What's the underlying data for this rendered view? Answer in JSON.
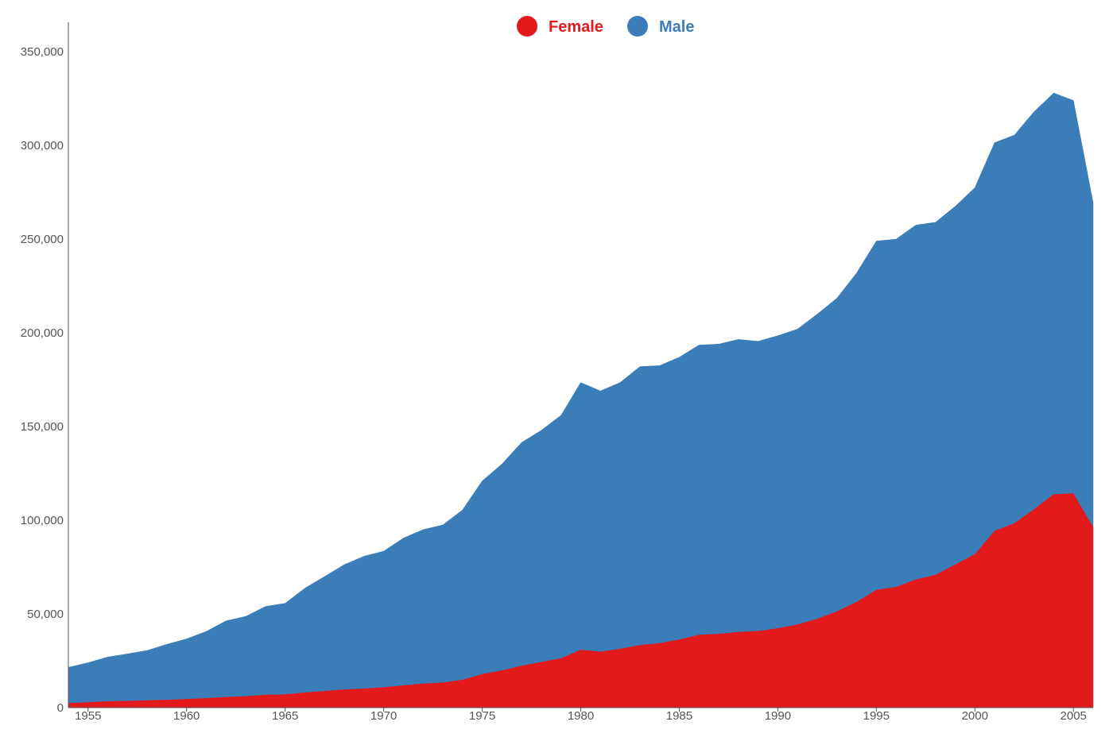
{
  "chart_data": {
    "type": "area",
    "stacked": true,
    "title": "",
    "xlabel": "",
    "ylabel": "",
    "xlim": [
      1954,
      2006
    ],
    "ylim": [
      0,
      370000
    ],
    "grid": false,
    "legend_position": "top-center",
    "x": [
      1954,
      1955,
      1956,
      1957,
      1958,
      1959,
      1960,
      1961,
      1962,
      1963,
      1964,
      1965,
      1966,
      1967,
      1968,
      1969,
      1970,
      1971,
      1972,
      1973,
      1974,
      1975,
      1976,
      1977,
      1978,
      1979,
      1980,
      1981,
      1982,
      1983,
      1984,
      1985,
      1986,
      1987,
      1988,
      1989,
      1990,
      1991,
      1992,
      1993,
      1994,
      1995,
      1996,
      1997,
      1998,
      1999,
      2000,
      2001,
      2002,
      2003,
      2004,
      2005,
      2006
    ],
    "x_ticks": [
      "1955",
      "1960",
      "1965",
      "1970",
      "1975",
      "1980",
      "1985",
      "1990",
      "1995",
      "2000",
      "2005"
    ],
    "y_ticks": [
      "0",
      "50,000",
      "100,000",
      "150,000",
      "200,000",
      "250,000",
      "300,000",
      "350,000"
    ],
    "series": [
      {
        "name": "Female",
        "color": "#e31a1c",
        "values": [
          2500,
          3000,
          3500,
          3700,
          4000,
          4300,
          4700,
          5200,
          5800,
          6200,
          7000,
          7200,
          8200,
          9000,
          9800,
          10300,
          11000,
          12000,
          13000,
          13500,
          15000,
          18000,
          20000,
          22500,
          24500,
          26500,
          31000,
          30000,
          31500,
          33500,
          34500,
          36500,
          39000,
          39500,
          40500,
          41000,
          42500,
          44500,
          47500,
          51500,
          56500,
          63000,
          64500,
          68500,
          71000,
          76500,
          82000,
          94500,
          98500,
          106000,
          114000,
          114500,
          96500
        ]
      },
      {
        "name": "Male",
        "color": "#3a7db8",
        "values": [
          19000,
          21000,
          23500,
          25000,
          26500,
          29500,
          32000,
          35500,
          40500,
          42500,
          47000,
          48500,
          55500,
          61000,
          66500,
          70500,
          72500,
          78500,
          82000,
          84000,
          90500,
          103000,
          110000,
          119000,
          123500,
          129500,
          142500,
          139000,
          142000,
          148500,
          148000,
          150500,
          154500,
          154500,
          156000,
          154500,
          156000,
          157500,
          162500,
          167000,
          175500,
          186000,
          185500,
          189000,
          188000,
          191000,
          195500,
          207000,
          207000,
          212000,
          214000,
          209500,
          173000
        ]
      }
    ]
  }
}
